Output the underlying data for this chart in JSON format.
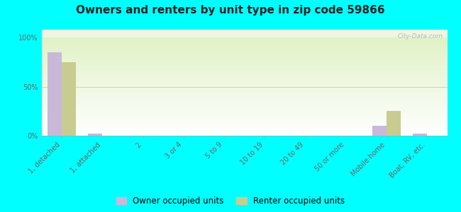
{
  "title": "Owners and renters by unit type in zip code 59866",
  "categories": [
    "1, detached",
    "1, attached",
    "2",
    "3 or 4",
    "5 to 9",
    "10 to 19",
    "20 to 49",
    "50 or more",
    "Mobile home",
    "Boat, RV, etc."
  ],
  "owner_values": [
    85,
    2,
    0,
    0,
    0,
    0,
    0,
    0,
    10,
    2
  ],
  "renter_values": [
    75,
    0,
    0,
    0,
    0,
    0,
    0,
    0,
    25,
    0
  ],
  "owner_color": "#c9b8d8",
  "renter_color": "#c8cc90",
  "background_color": "#00ffff",
  "yticks": [
    0,
    50,
    100
  ],
  "ytick_labels": [
    "0%",
    "50%",
    "100%"
  ],
  "grid_color": "#e8c0c0",
  "bar_width": 0.35,
  "title_fontsize": 11,
  "tick_fontsize": 7,
  "legend_fontsize": 8.5
}
